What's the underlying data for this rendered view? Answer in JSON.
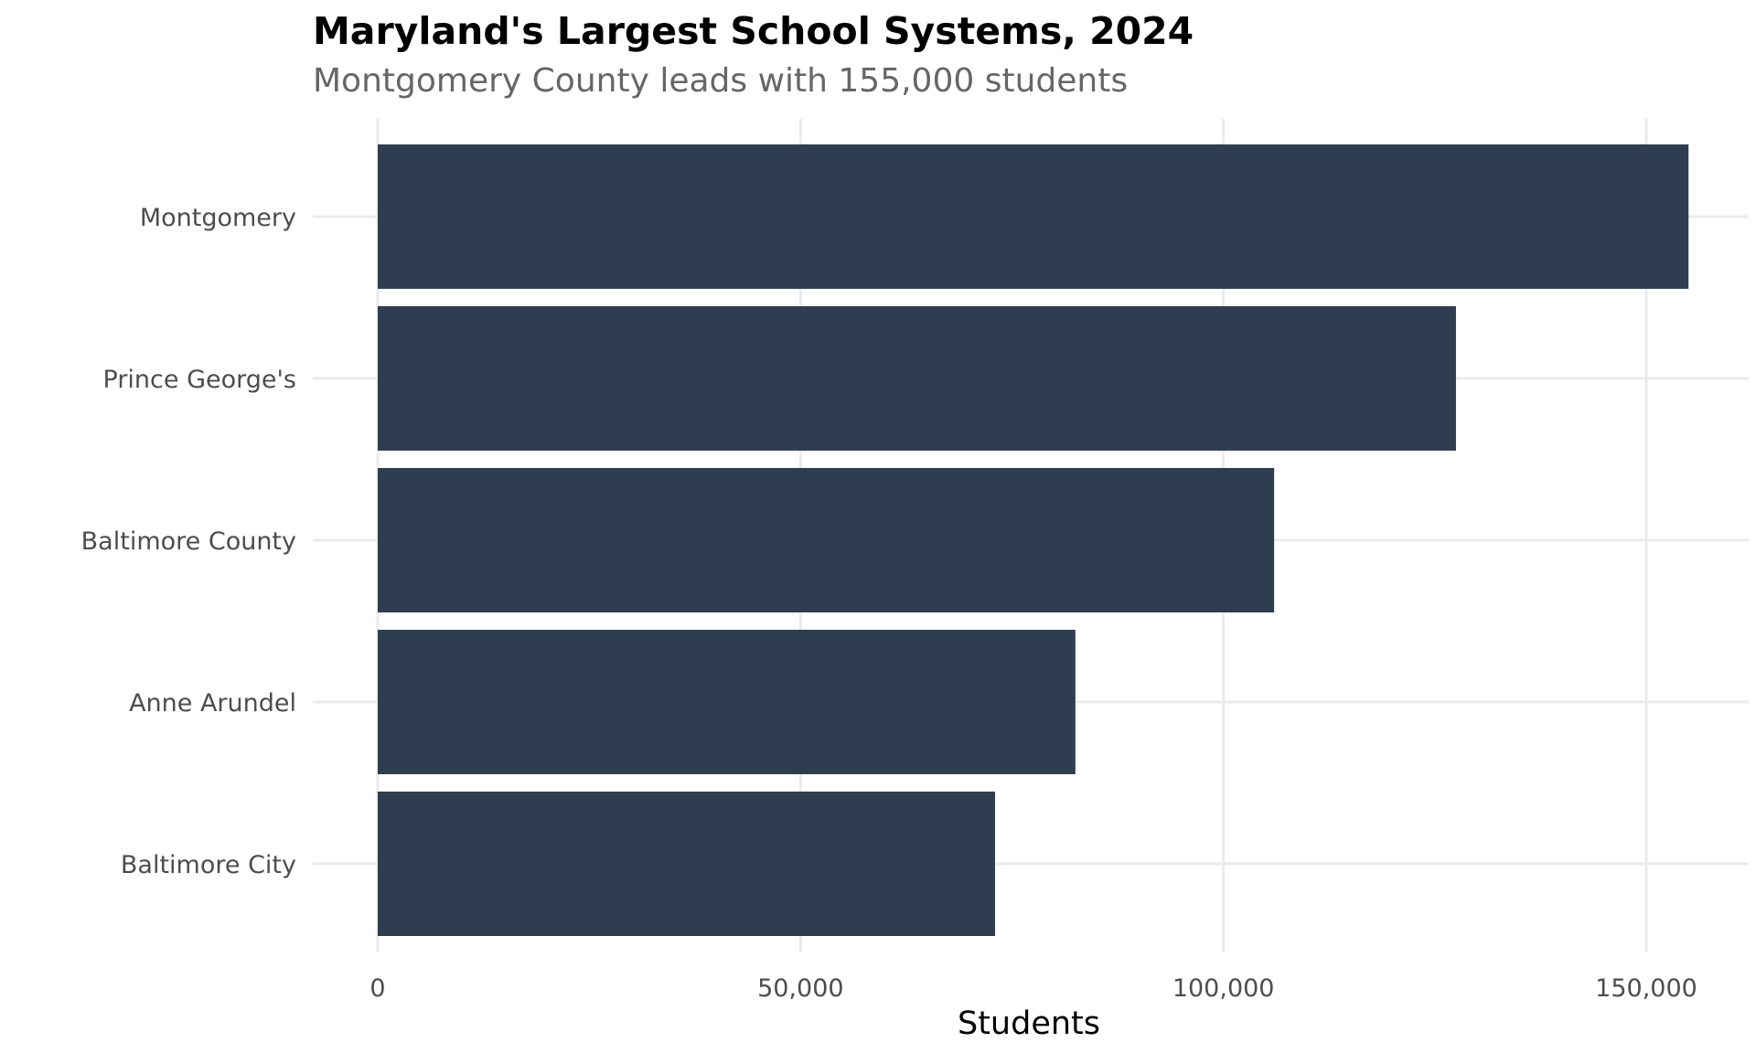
{
  "chart_data": {
    "type": "bar",
    "orientation": "horizontal",
    "title": "Maryland's Largest School Systems, 2024",
    "subtitle": "Montgomery County leads with 155,000 students",
    "xlabel": "Students",
    "ylabel": "",
    "categories": [
      "Montgomery",
      "Prince George's",
      "Baltimore County",
      "Anne Arundel",
      "Baltimore City"
    ],
    "values": [
      155000,
      127500,
      106000,
      82500,
      73000
    ],
    "xlim": [
      0,
      162000
    ],
    "xticks": [
      0,
      50000,
      100000,
      150000
    ],
    "xtick_labels": [
      "0",
      "50,000",
      "100,000",
      "150,000"
    ],
    "grid": true,
    "legend": "none",
    "bar_color": "#2e3e50",
    "grid_color": "#ebebeb"
  }
}
